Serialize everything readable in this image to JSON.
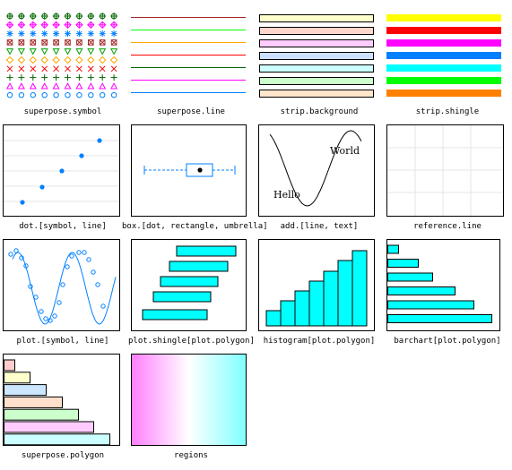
{
  "labels": {
    "superpose_symbol": "superpose.symbol",
    "superpose_line": "superpose.line",
    "strip_background": "strip.background",
    "strip_shingle": "strip.shingle",
    "dot": "dot.[symbol, line]",
    "box": "box.[dot, rectangle, umbrella]",
    "add": "add.[line, text]",
    "reference": "reference.line",
    "plot": "plot.[symbol, line]",
    "plot_shingle": "plot.shingle[plot.polygon]",
    "histogram": "histogram[plot.polygon]",
    "barchart": "barchart[plot.polygon]",
    "superpose_polygon": "superpose.polygon",
    "regions": "regions"
  },
  "add_text": {
    "world": "World",
    "hello": "Hello"
  },
  "colors": {
    "superpose": [
      "#0080ff",
      "#ff00ff",
      "#006400",
      "#ff0000",
      "#ffa500",
      "#00ff00",
      "#a52a2a"
    ],
    "strip_background": [
      "#ffffcc",
      "#ffd6cc",
      "#ffccff",
      "#cce0ff",
      "#ccffff",
      "#ccffcc",
      "#ffe6cc"
    ],
    "strip_shingle": [
      "#ffff00",
      "#ff0000",
      "#ff00ff",
      "#0080ff",
      "#00ffff",
      "#00ff00",
      "#ff8000"
    ],
    "superpose_polygon": [
      "#ccffff",
      "#ffccff",
      "#ccffcc",
      "#ffe0cc",
      "#cce6ff",
      "#ffffcc",
      "#ffcccc"
    ],
    "plot_blue": "#0080ff",
    "polygon_fill": "#00ffff"
  },
  "symbols": [
    "circle",
    "triangle",
    "plus",
    "cross",
    "diamond",
    "triangle-down",
    "square",
    "asterisk",
    "diamond-plus",
    "circle-plus"
  ]
}
